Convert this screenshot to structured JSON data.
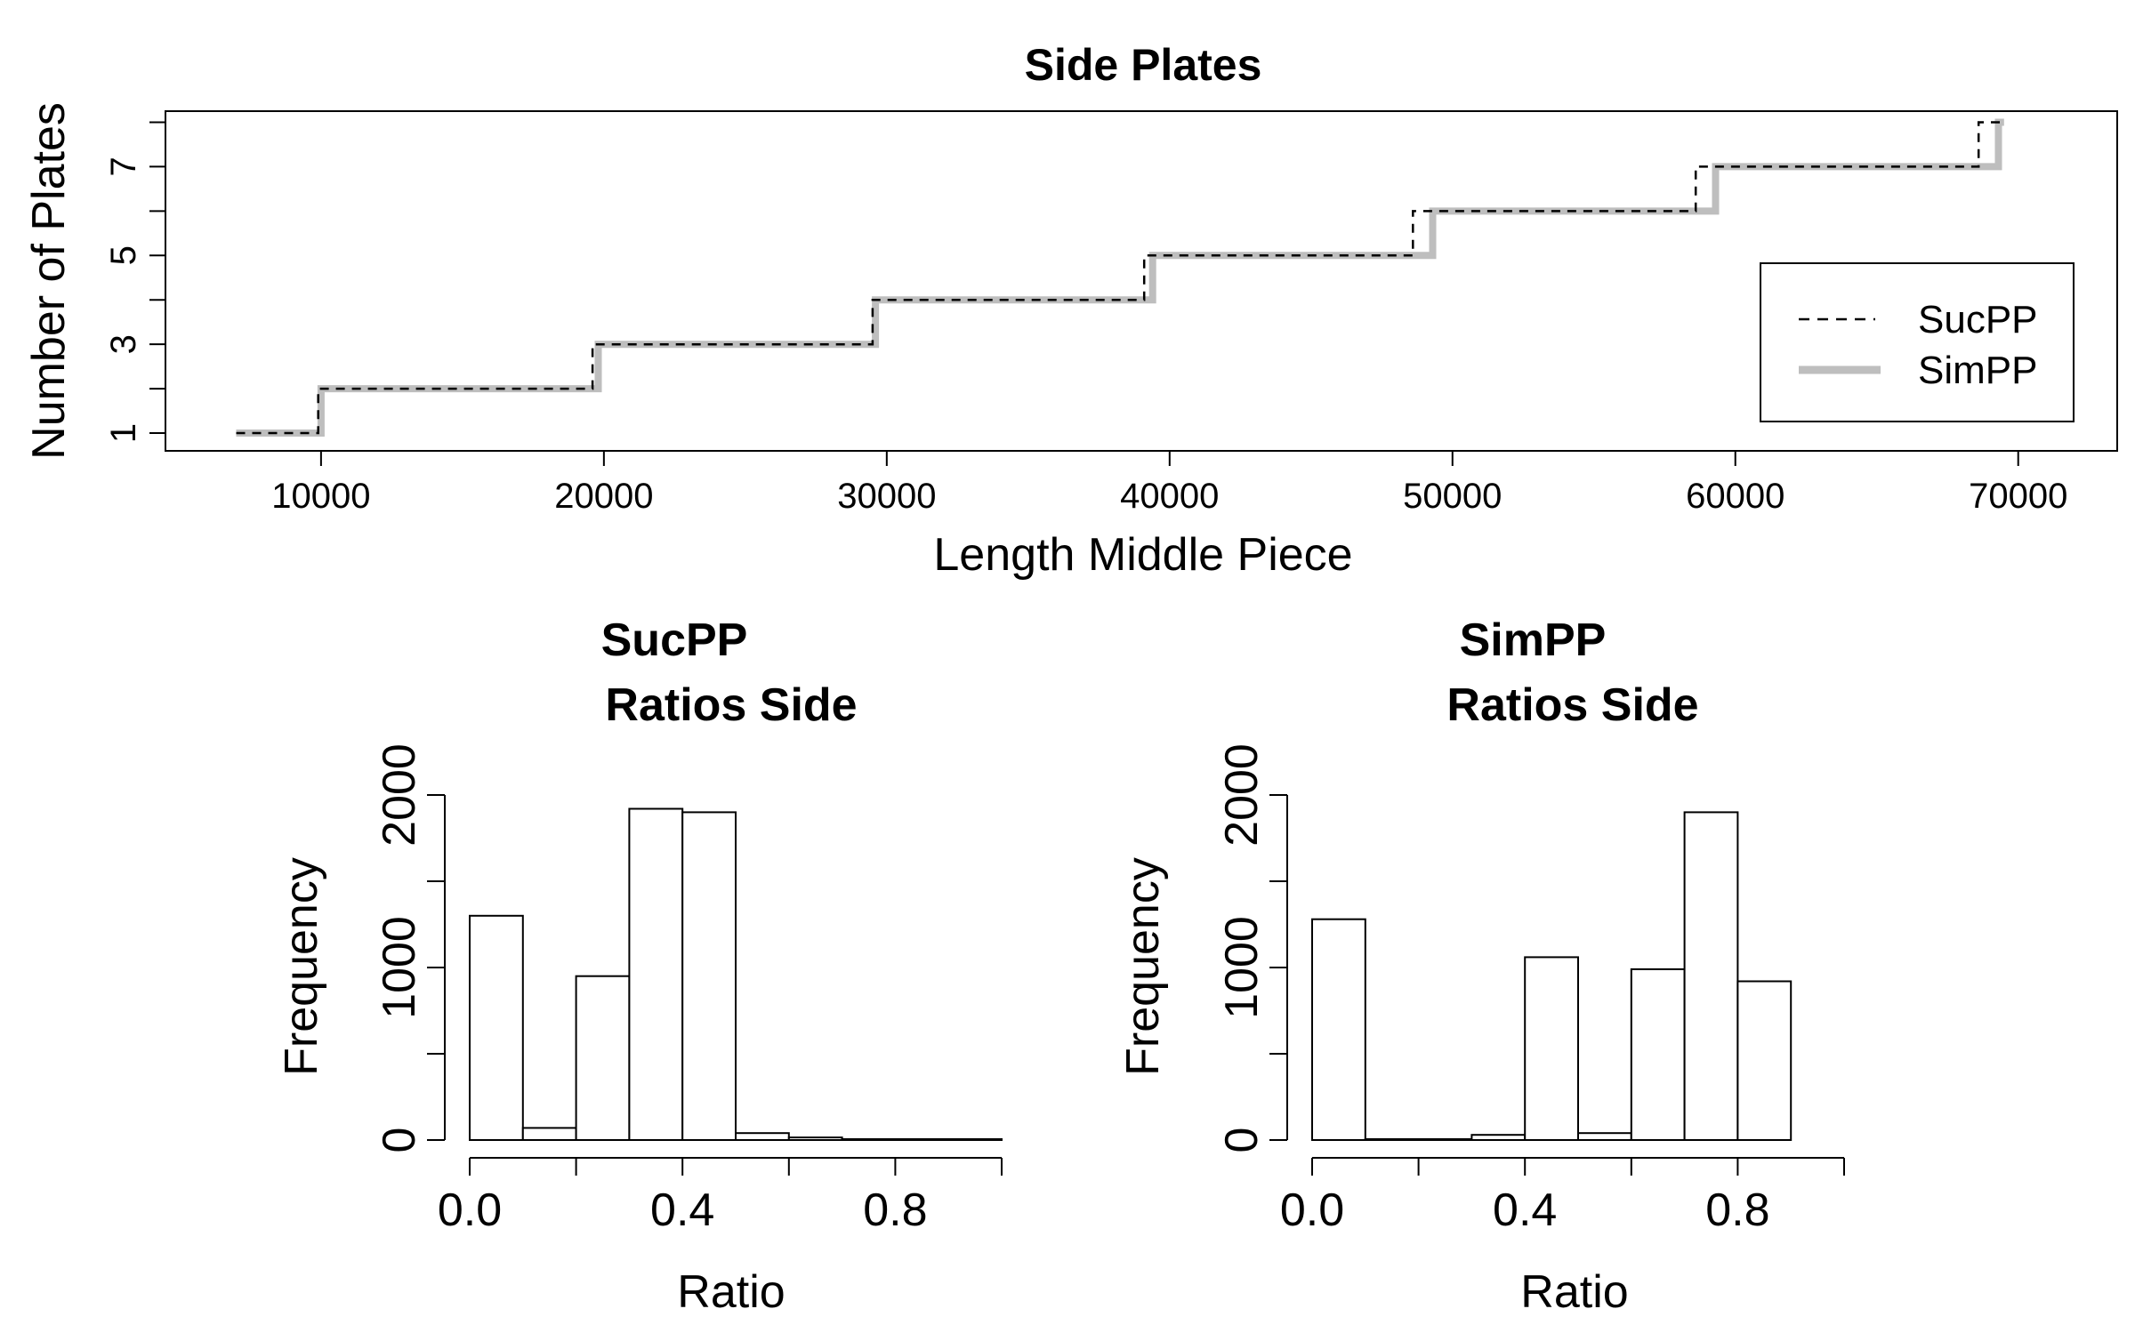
{
  "chart_data": [
    {
      "type": "line",
      "title": "Side Plates",
      "xlabel": "Length Middle Piece",
      "ylabel": "Number of Plates",
      "xlim": [
        4500,
        73500
      ],
      "ylim": [
        0.6,
        8.25
      ],
      "xticks": [
        10000,
        20000,
        30000,
        40000,
        50000,
        60000,
        70000
      ],
      "xtick_labels": [
        "10000",
        "20000",
        "30000",
        "40000",
        "50000",
        "60000",
        "70000"
      ],
      "yticks": [
        1,
        2,
        3,
        4,
        5,
        6,
        7,
        8
      ],
      "ytick_labels": [
        "1",
        "3",
        "5",
        "7"
      ],
      "ytick_label_values": [
        1,
        3,
        5,
        7
      ],
      "legend": {
        "position": "bottom-right",
        "entries": [
          "SucPP",
          "SimPP"
        ]
      },
      "series": [
        {
          "name": "SucPP",
          "style": "dashed",
          "color": "#000000",
          "x": [
            7000,
            9900,
            9900,
            19600,
            19600,
            29500,
            29500,
            39100,
            39100,
            48600,
            48600,
            58600,
            58600,
            68600,
            68600,
            69600
          ],
          "y": [
            1,
            1,
            2,
            2,
            3,
            3,
            4,
            4,
            5,
            5,
            6,
            6,
            7,
            7,
            8,
            8
          ]
        },
        {
          "name": "SimPP",
          "style": "solid",
          "color": "#bebebe",
          "x": [
            7000,
            10000,
            10000,
            19800,
            19800,
            29600,
            29600,
            39400,
            39400,
            49300,
            49300,
            59300,
            59300,
            69300,
            69300,
            69500
          ],
          "y": [
            1,
            1,
            2,
            2,
            3,
            3,
            4,
            4,
            5,
            5,
            6,
            6,
            7,
            7,
            8,
            8
          ]
        }
      ]
    },
    {
      "type": "bar",
      "title": "SucPP",
      "title_line2": "Ratios Side",
      "xlabel": "Ratio",
      "ylabel": "Frequency",
      "xlim": [
        0,
        1
      ],
      "ylim": [
        0,
        2000
      ],
      "xticks": [
        0,
        0.2,
        0.4,
        0.6,
        0.8,
        1.0
      ],
      "xtick_labels": [
        "0.0",
        "0.4",
        "0.8"
      ],
      "xtick_label_values": [
        0,
        0.4,
        0.8
      ],
      "yticks": [
        0,
        500,
        1000,
        1500,
        2000
      ],
      "ytick_labels": [
        "0",
        "1000",
        "2000"
      ],
      "ytick_label_values": [
        0,
        1000,
        2000
      ],
      "bin_edges": [
        0,
        0.1,
        0.2,
        0.3,
        0.4,
        0.5,
        0.6,
        0.7,
        0.8,
        0.9,
        1.0
      ],
      "values": [
        1300,
        70,
        950,
        1920,
        1900,
        40,
        15,
        5,
        5,
        5
      ]
    },
    {
      "type": "bar",
      "title": "SimPP",
      "title_line2": "Ratios Side",
      "xlabel": "Ratio",
      "ylabel": "Frequency",
      "xlim": [
        0,
        1
      ],
      "ylim": [
        0,
        2000
      ],
      "xticks": [
        0,
        0.2,
        0.4,
        0.6,
        0.8,
        1.0
      ],
      "xtick_labels": [
        "0.0",
        "0.4",
        "0.8"
      ],
      "xtick_label_values": [
        0,
        0.4,
        0.8
      ],
      "yticks": [
        0,
        500,
        1000,
        1500,
        2000
      ],
      "ytick_labels": [
        "0",
        "1000",
        "2000"
      ],
      "ytick_label_values": [
        0,
        1000,
        2000
      ],
      "bin_edges": [
        0,
        0.1,
        0.2,
        0.3,
        0.4,
        0.5,
        0.6,
        0.7,
        0.8,
        0.9
      ],
      "values": [
        1280,
        5,
        5,
        30,
        1060,
        40,
        990,
        1900,
        920
      ]
    }
  ]
}
